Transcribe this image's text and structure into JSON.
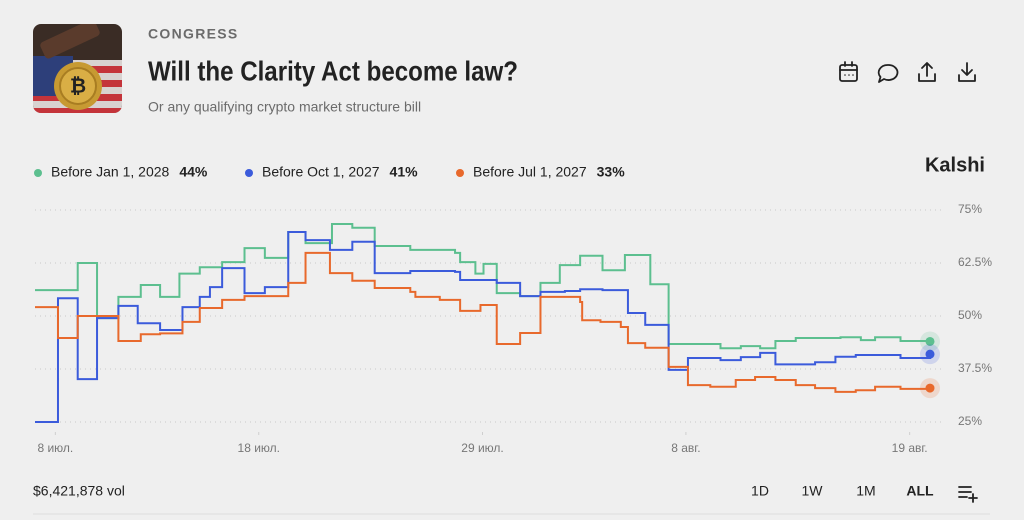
{
  "header": {
    "category": "CONGRESS",
    "title": "Will the Clarity Act become law?",
    "subtitle": "Or any qualifying crypto market structure bill"
  },
  "brand": "Kalshi",
  "chart_data": {
    "type": "line",
    "step": true,
    "grid": true,
    "xlim": [
      7,
      51
    ],
    "xticks": [
      {
        "value": 8,
        "label": "8 июл."
      },
      {
        "value": 18,
        "label": "18 июл."
      },
      {
        "value": 29,
        "label": "29 июл."
      },
      {
        "value": 39,
        "label": "8 авг."
      },
      {
        "value": 50,
        "label": "19 авг."
      }
    ],
    "ylim": [
      25,
      75
    ],
    "yticks": [
      {
        "value": 25,
        "label": "25%"
      },
      {
        "value": 37.5,
        "label": "37.5%"
      },
      {
        "value": 50,
        "label": "50%"
      },
      {
        "value": 62.5,
        "label": "62.5%"
      },
      {
        "value": 75,
        "label": "75%"
      }
    ],
    "series": [
      {
        "name": "Before Jan 1, 2028",
        "color": "#5cbf8f",
        "value_label": "44%",
        "x": [
          7.0,
          9.1,
          10.05,
          10.2,
          11.1,
          12.2,
          13.15,
          14.1,
          15.1,
          16.2,
          17.3,
          18.3,
          19.45,
          20.3,
          21.6,
          22.6,
          23.7,
          25.45,
          27.65,
          27.9,
          28.65,
          29.05,
          29.7,
          30.85,
          31.85,
          32.8,
          33.8,
          34.9,
          36.0,
          37.25,
          38.15,
          40.7,
          41.7,
          42.65,
          43.4,
          44.4,
          46.6,
          47.6,
          48.3,
          49.55,
          51.0
        ],
        "values": [
          56.1,
          62.5,
          49.5,
          49.5,
          54.5,
          57.3,
          54.5,
          60.0,
          61.5,
          62.7,
          66.0,
          63.7,
          69.8,
          67.2,
          71.7,
          70.8,
          66.5,
          65.6,
          64.9,
          62.7,
          60.0,
          62.3,
          55.4,
          54.7,
          57.8,
          62.0,
          64.2,
          60.8,
          64.4,
          57.5,
          43.4,
          42.4,
          42.9,
          42.4,
          44.1,
          44.8,
          45.0,
          44.3,
          45.0,
          44.1,
          44
        ]
      },
      {
        "name": "Before Oct 1, 2027",
        "color": "#3b5bdb",
        "value_label": "41%",
        "x": [
          7.0,
          8.13,
          9.1,
          10.05,
          11.1,
          12.05,
          13.15,
          14.25,
          15.1,
          15.6,
          16.2,
          17.3,
          18.3,
          19.45,
          20.3,
          21.5,
          22.6,
          23.7,
          25.45,
          27.65,
          27.9,
          29.7,
          30.85,
          31.85,
          33.05,
          33.8,
          34.9,
          36.15,
          37.0,
          38.15,
          39.1,
          40.7,
          41.7,
          42.65,
          43.4,
          45.35,
          46.35,
          47.35,
          49.55,
          51.0
        ],
        "values": [
          25.0,
          54.2,
          35.1,
          49.5,
          52.4,
          48.3,
          46.7,
          52.1,
          54.5,
          56.8,
          61.3,
          55.4,
          56.8,
          69.8,
          67.9,
          65.6,
          67.5,
          60.1,
          60.6,
          60.4,
          58.5,
          57.8,
          54.7,
          55.7,
          55.9,
          56.3,
          56.1,
          50.7,
          47.9,
          37.3,
          40.1,
          39.6,
          40.3,
          41.3,
          38.6,
          39.1,
          40.4,
          40.8,
          40.1,
          41
        ]
      },
      {
        "name": "Before Jul 1, 2027",
        "color": "#e8692c",
        "value_label": "33%",
        "x": [
          7.0,
          8.13,
          9.1,
          11.1,
          12.2,
          13.15,
          14.25,
          15.1,
          16.2,
          17.3,
          19.45,
          20.3,
          21.5,
          22.6,
          23.7,
          25.45,
          25.7,
          26.9,
          27.9,
          28.9,
          29.7,
          30.85,
          31.85,
          33.8,
          33.9,
          34.8,
          35.8,
          36.15,
          37.0,
          38.15,
          39.1,
          40.2,
          41.45,
          42.4,
          43.4,
          44.4,
          45.35,
          46.35,
          47.35,
          48.3,
          49.55,
          51.0
        ],
        "values": [
          52.1,
          44.8,
          50.0,
          44.1,
          45.7,
          45.9,
          48.6,
          51.9,
          53.8,
          54.7,
          57.8,
          64.9,
          60.1,
          58.3,
          56.6,
          55.7,
          54.5,
          53.8,
          51.2,
          52.6,
          43.4,
          46.0,
          54.5,
          53.3,
          49.0,
          48.6,
          47.4,
          43.6,
          42.5,
          38.0,
          33.7,
          33.3,
          34.9,
          35.6,
          34.9,
          33.7,
          33.0,
          32.1,
          32.5,
          33.3,
          32.8,
          33
        ]
      }
    ]
  },
  "footer": {
    "volume": "$6,421,878 vol",
    "ranges": [
      "1D",
      "1W",
      "1M",
      "ALL"
    ]
  }
}
